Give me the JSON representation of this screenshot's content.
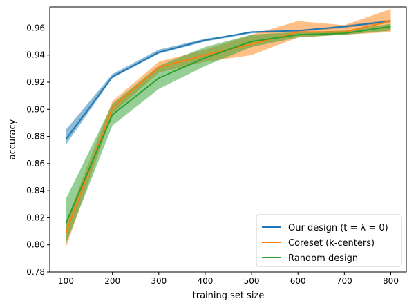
{
  "chart_data": {
    "type": "line",
    "title": "",
    "xlabel": "training set size",
    "ylabel": "accuracy",
    "x": [
      100,
      200,
      300,
      400,
      500,
      600,
      700,
      800
    ],
    "xticks": [
      100,
      200,
      300,
      400,
      500,
      600,
      700,
      800
    ],
    "yticks": [
      0.78,
      0.8,
      0.82,
      0.84,
      0.86,
      0.88,
      0.9,
      0.92,
      0.94,
      0.96
    ],
    "ytick_labels": [
      "0.78",
      "0.80",
      "0.82",
      "0.84",
      "0.86",
      "0.88",
      "0.90",
      "0.92",
      "0.94",
      "0.96"
    ],
    "xlim": [
      65,
      835
    ],
    "ylim": [
      0.78,
      0.9755
    ],
    "grid": false,
    "legend_position": "lower-right",
    "series": [
      {
        "name": "Our design (t = λ = 0)",
        "color": "#1f77b4",
        "values": [
          0.878,
          0.924,
          0.942,
          0.951,
          0.957,
          0.958,
          0.961,
          0.965
        ],
        "lower": [
          0.874,
          0.923,
          0.941,
          0.95,
          0.956,
          0.957,
          0.96,
          0.964
        ],
        "upper": [
          0.885,
          0.926,
          0.944,
          0.952,
          0.957,
          0.958,
          0.962,
          0.966
        ]
      },
      {
        "name": "Coreset (k-centers)",
        "color": "#ff7f0e",
        "values": [
          0.809,
          0.901,
          0.931,
          0.94,
          0.948,
          0.957,
          0.957,
          0.965
        ],
        "lower": [
          0.798,
          0.897,
          0.927,
          0.935,
          0.94,
          0.953,
          0.955,
          0.957
        ],
        "upper": [
          0.817,
          0.906,
          0.935,
          0.944,
          0.955,
          0.965,
          0.962,
          0.974
        ]
      },
      {
        "name": "Random design",
        "color": "#2ca02c",
        "values": [
          0.816,
          0.896,
          0.923,
          0.938,
          0.95,
          0.955,
          0.956,
          0.961
        ],
        "lower": [
          0.801,
          0.888,
          0.915,
          0.932,
          0.946,
          0.953,
          0.955,
          0.958
        ],
        "upper": [
          0.834,
          0.904,
          0.932,
          0.946,
          0.955,
          0.957,
          0.958,
          0.963
        ]
      }
    ]
  }
}
